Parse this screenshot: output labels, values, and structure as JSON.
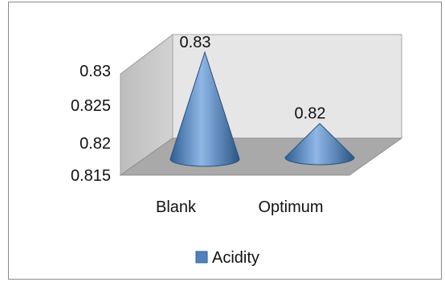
{
  "chart_data": {
    "type": "bar",
    "subtype": "3d-cone",
    "categories": [
      "Blank",
      "Optimum"
    ],
    "series": [
      {
        "name": "Acidity",
        "values": [
          0.83,
          0.82
        ],
        "color": "#4F81BD"
      }
    ],
    "data_labels": [
      "0.83",
      "0.82"
    ],
    "y_ticks": [
      "0.815",
      "0.82",
      "0.825",
      "0.83"
    ],
    "ylim": [
      0.815,
      0.83
    ],
    "grid": false,
    "legend_position": "bottom",
    "title": "",
    "xlabel": "",
    "ylabel": ""
  }
}
